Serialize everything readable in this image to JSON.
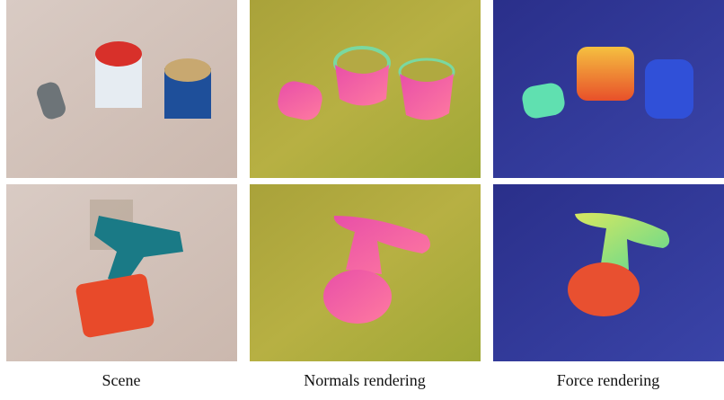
{
  "figure": {
    "captions": [
      "Scene",
      "Normals rendering",
      "Force rendering"
    ]
  }
}
